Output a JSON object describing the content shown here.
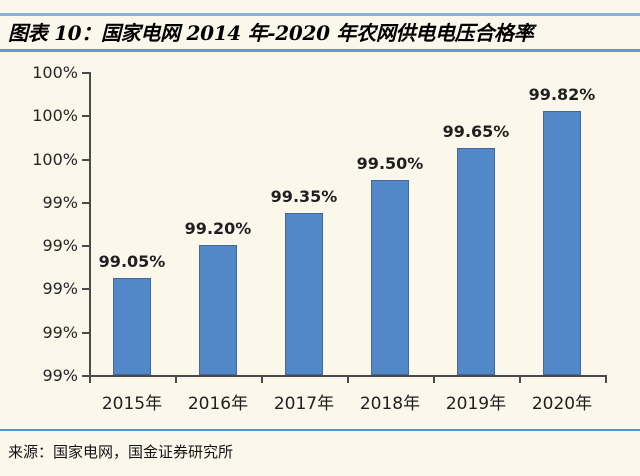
{
  "header": {
    "title": "图表 10：国家电网 2014 年-2020 年农网供电电压合格率"
  },
  "footer": {
    "source": "来源：国家电网，国金证券研究所"
  },
  "colors": {
    "background": "#fcf7eb",
    "bar_fill": "#5287c8",
    "bar_border": "#41679e",
    "axis": "#4a4a4a",
    "divider_top": "#85b3da",
    "divider_title": "#5b9bd5",
    "divider_bottom": "#4e97cf"
  },
  "chart_data": {
    "type": "bar",
    "title": "图表 10：国家电网 2014 年-2020 年农网供电电压合格率",
    "categories": [
      "2015年",
      "2016年",
      "2017年",
      "2018年",
      "2019年",
      "2020年"
    ],
    "values": [
      99.05,
      99.2,
      99.35,
      99.5,
      99.65,
      99.82
    ],
    "data_labels": [
      "99.05%",
      "99.20%",
      "99.35%",
      "99.50%",
      "99.65%",
      "99.82%"
    ],
    "xlabel": "",
    "ylabel": "",
    "ylim": [
      98.6,
      100.0
    ],
    "ytick_step": 0.2,
    "ytick_labels_top_to_bottom": [
      "100%",
      "100%",
      "100%",
      "99%",
      "99%",
      "99%",
      "99%",
      "99%"
    ],
    "grid": false,
    "legend_position": "none",
    "bar_color": "#5287c8"
  }
}
